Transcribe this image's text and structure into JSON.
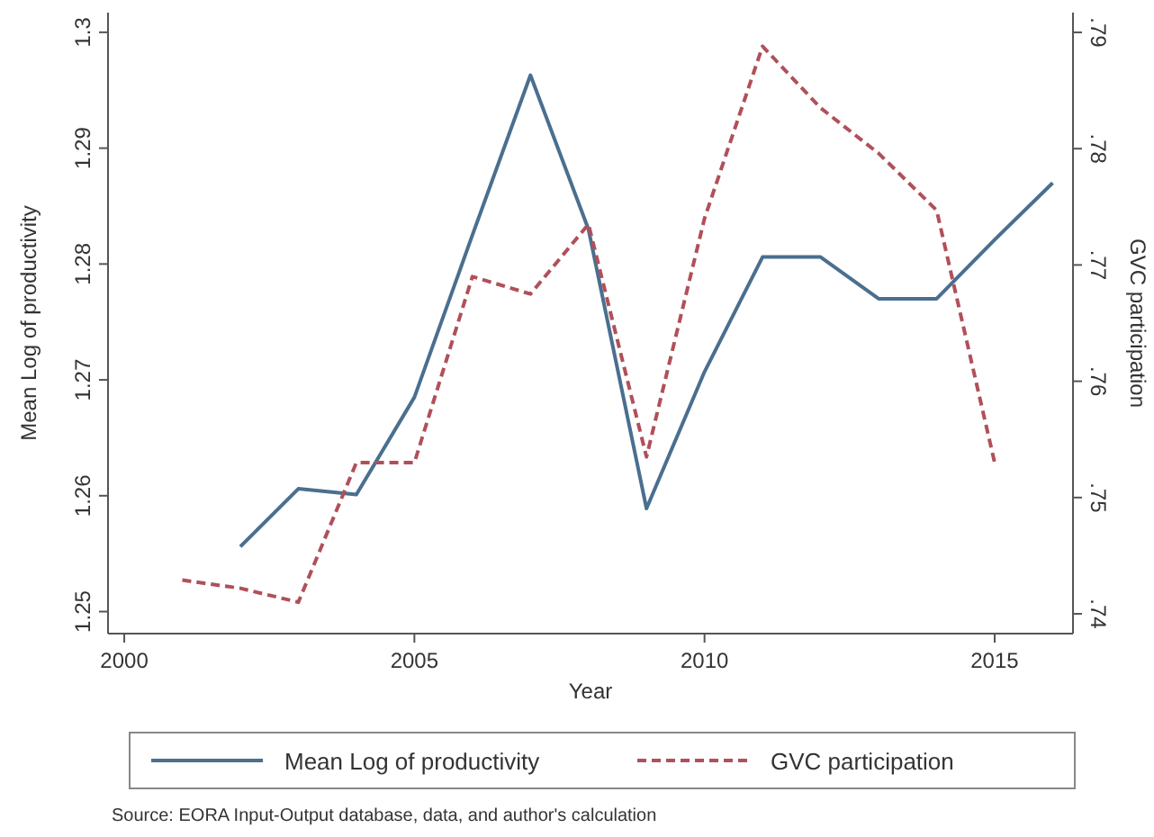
{
  "chart_data": {
    "type": "line",
    "xlabel": "Year",
    "ylabel": "Mean Log of productivity",
    "y2label": "GVC participation",
    "annotations": [
      "Source: EORA Input-Output database, data, and author's calculation"
    ],
    "series": [
      {
        "name": "Mean Log of productivity",
        "color": "#4a6f8f",
        "line_style": "solid",
        "x": [
          2002,
          2003,
          2004,
          2005,
          2006,
          2007,
          2008,
          2009,
          2010,
          2011,
          2012,
          2013,
          2014,
          2015,
          2016
        ],
        "values": [
          1.2556,
          1.2606,
          1.2601,
          1.2685,
          1.2825,
          1.2963,
          1.283,
          1.2589,
          1.2707,
          1.2806,
          1.2806,
          1.277,
          1.277,
          1.2821,
          1.287
        ]
      },
      {
        "name": "GVC participation",
        "color": "#b0505a",
        "line_style": "dashed",
        "axis": "y2",
        "x": [
          2001,
          2002,
          2003,
          2004,
          2005,
          2006,
          2007,
          2008,
          2009,
          2010,
          2011,
          2012,
          2013,
          2014,
          2015
        ],
        "values": [
          0.7429,
          0.7422,
          0.741,
          0.753,
          0.753,
          0.769,
          0.7675,
          0.7735,
          0.7535,
          0.774,
          0.7888,
          0.7835,
          0.7796,
          0.7747,
          0.753
        ]
      }
    ],
    "xlim": [
      1999.72,
      2016.35
    ],
    "xticks": [
      2000,
      2005,
      2010,
      2015
    ],
    "ylim": [
      1.2481,
      1.3017
    ],
    "yticks": [
      1.25,
      1.26,
      1.27,
      1.28,
      1.29,
      1.3
    ],
    "y2lim": [
      0.7383,
      0.7917
    ],
    "y2ticks": [
      {
        "value": 0.74,
        "label": ".74"
      },
      {
        "value": 0.75,
        "label": ".75"
      },
      {
        "value": 0.76,
        "label": ".76"
      },
      {
        "value": 0.77,
        "label": ".77"
      },
      {
        "value": 0.78,
        "label": ".78"
      },
      {
        "value": 0.79,
        "label": ".79"
      }
    ],
    "grid": false,
    "legend": "bottom"
  }
}
